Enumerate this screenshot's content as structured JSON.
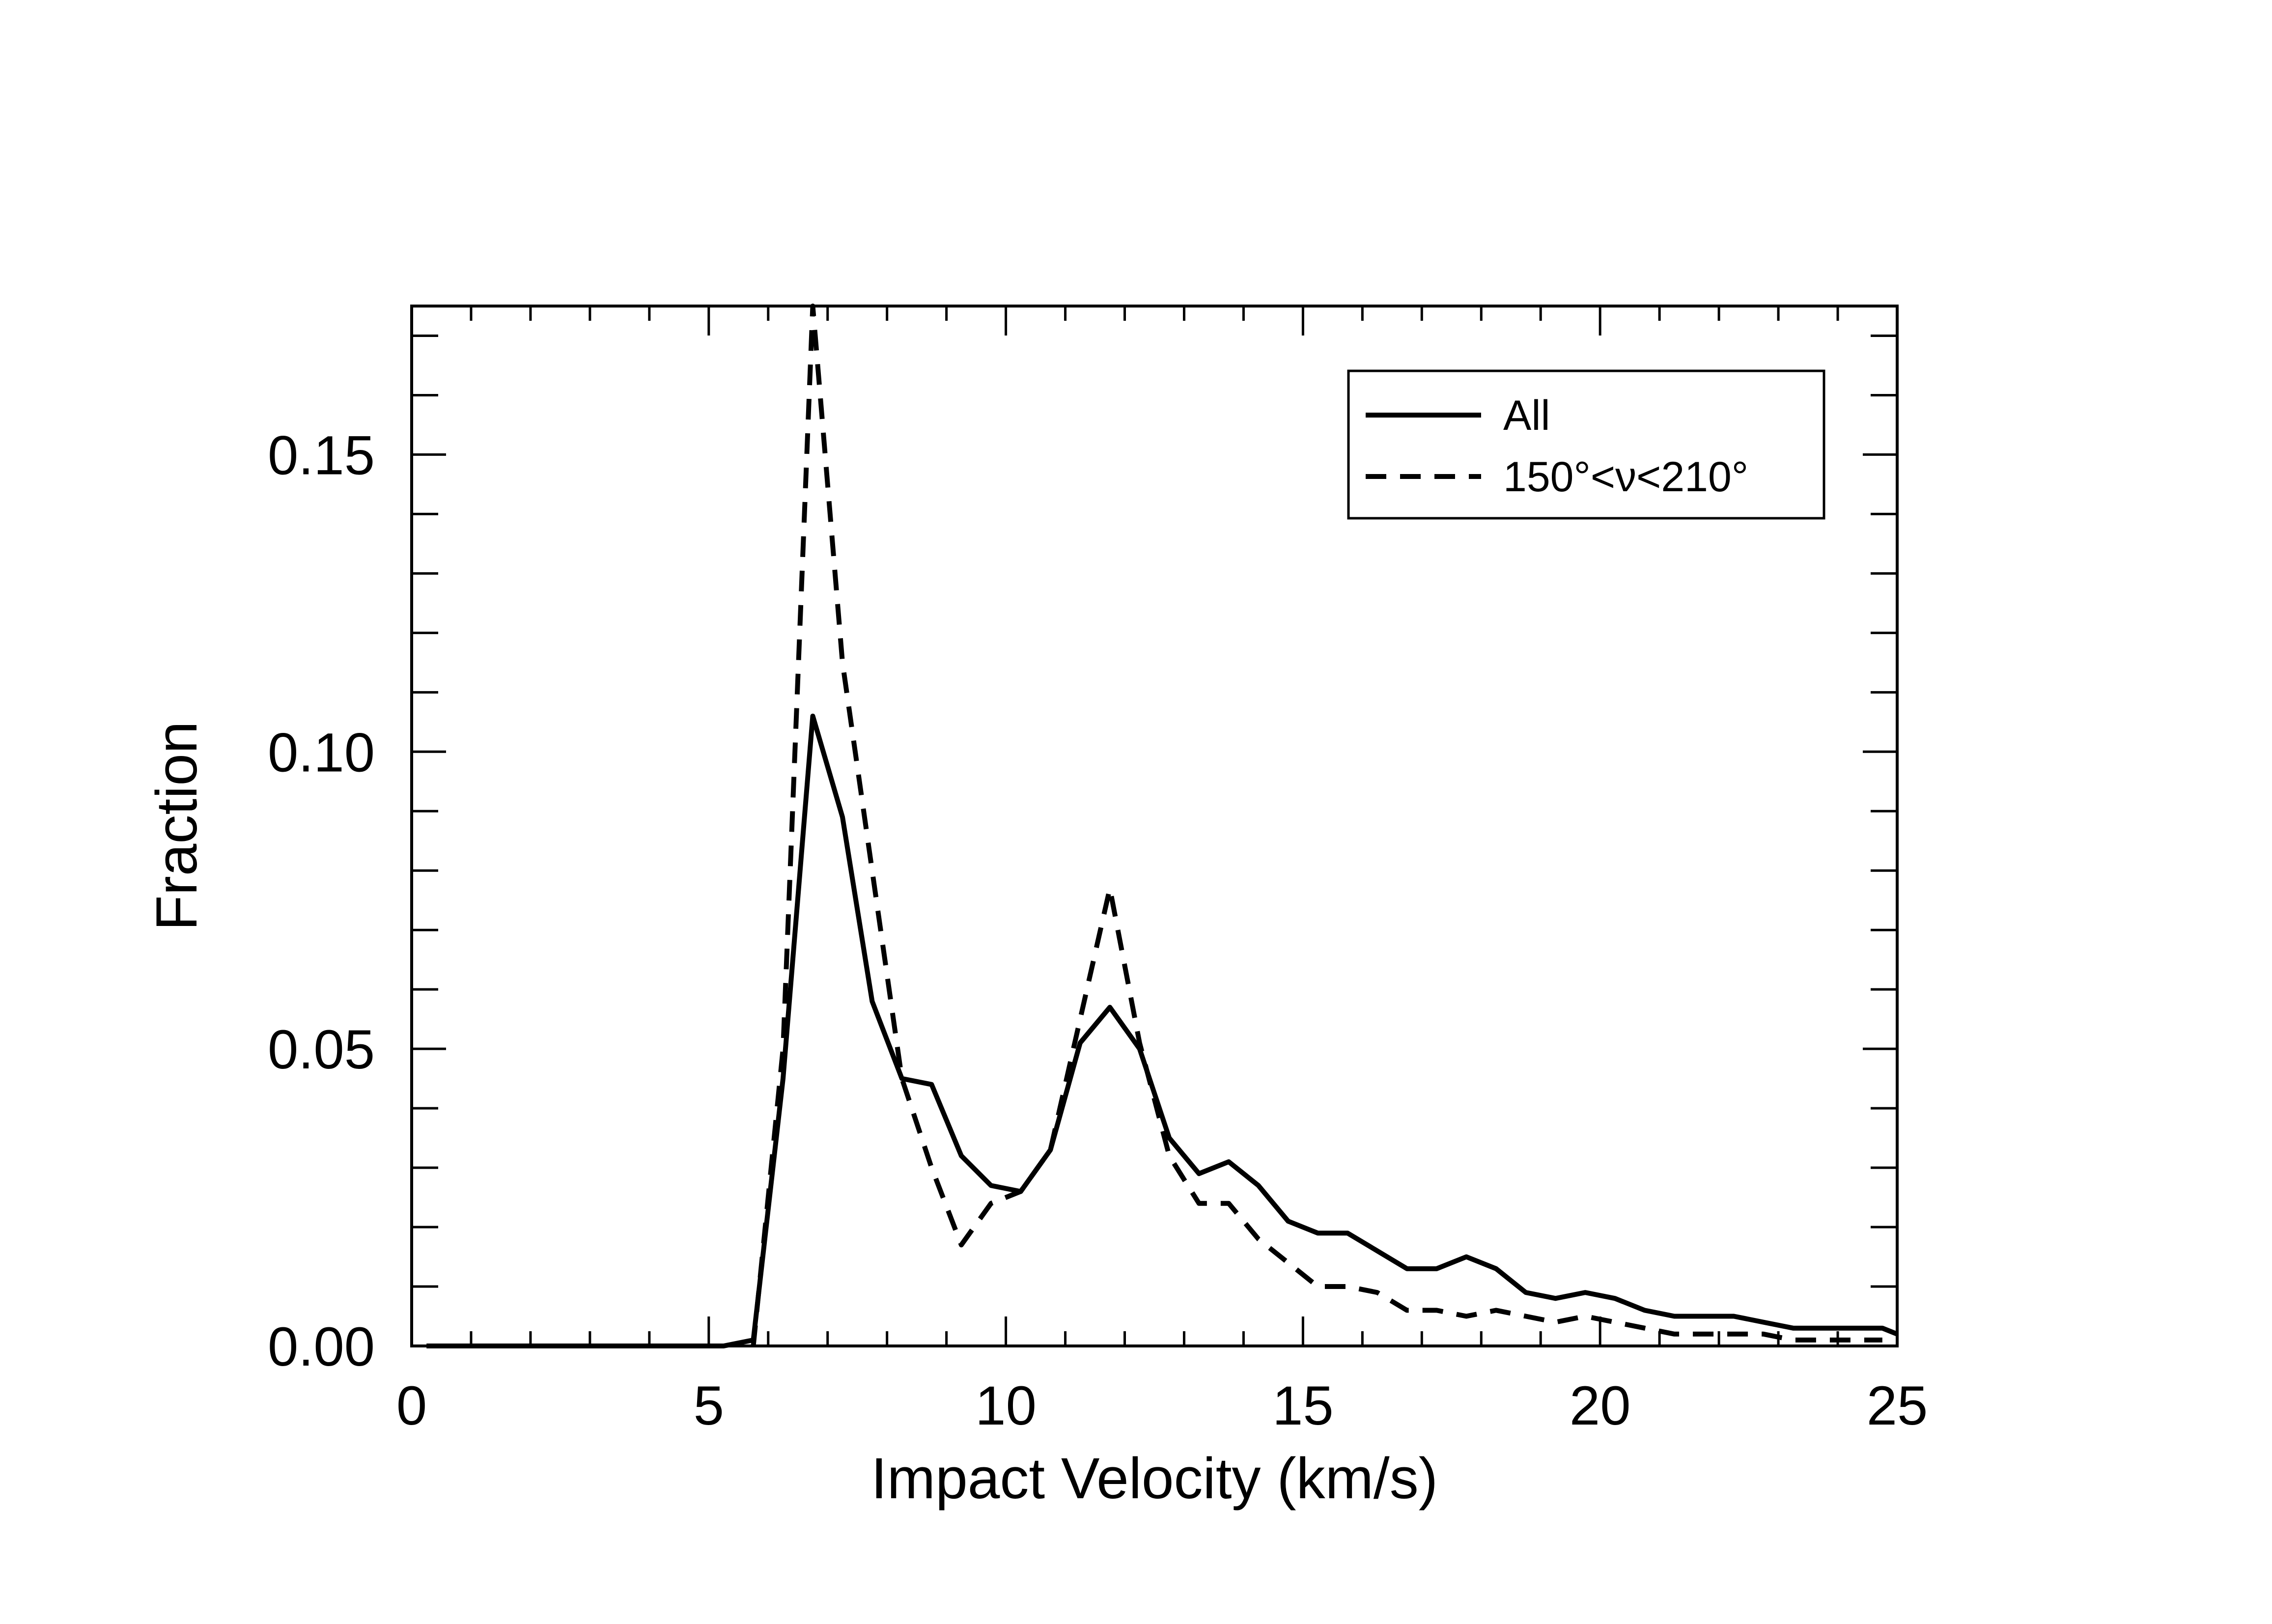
{
  "chart_data": {
    "type": "line",
    "title": "",
    "xlabel": "Impact Velocity (km/s)",
    "ylabel": "Fraction",
    "xlim": [
      0,
      25
    ],
    "ylim": [
      0,
      0.175
    ],
    "xticks": [
      0,
      5,
      10,
      15,
      20,
      25
    ],
    "xtick_labels": [
      "0",
      "5",
      "10",
      "15",
      "20",
      "25"
    ],
    "yticks": [
      0.0,
      0.05,
      0.1,
      0.15
    ],
    "ytick_labels": [
      "0.00",
      "0.05",
      "0.10",
      "0.15"
    ],
    "legend_position": "top-right",
    "series": [
      {
        "name": "All",
        "style": "solid",
        "color": "#000000",
        "x": [
          0.25,
          0.75,
          1.25,
          1.75,
          2.25,
          2.75,
          3.25,
          3.75,
          4.25,
          4.75,
          5.25,
          5.75,
          6.25,
          6.75,
          7.25,
          7.75,
          8.25,
          8.75,
          9.25,
          9.75,
          10.25,
          10.75,
          11.25,
          11.75,
          12.25,
          12.75,
          13.25,
          13.75,
          14.25,
          14.75,
          15.25,
          15.75,
          16.25,
          16.75,
          17.25,
          17.75,
          18.25,
          18.75,
          19.25,
          19.75,
          20.25,
          20.75,
          21.25,
          21.75,
          22.25,
          22.75,
          23.25,
          23.75,
          24.25,
          24.75,
          25.0
        ],
        "values": [
          0.0,
          0.0,
          0.0,
          0.0,
          0.0,
          0.0,
          0.0,
          0.0,
          0.0,
          0.0,
          0.0,
          0.001,
          0.045,
          0.106,
          0.089,
          0.058,
          0.045,
          0.044,
          0.032,
          0.027,
          0.026,
          0.033,
          0.051,
          0.057,
          0.05,
          0.035,
          0.029,
          0.031,
          0.027,
          0.021,
          0.019,
          0.019,
          0.016,
          0.013,
          0.013,
          0.015,
          0.013,
          0.009,
          0.008,
          0.009,
          0.008,
          0.006,
          0.005,
          0.005,
          0.005,
          0.004,
          0.003,
          0.003,
          0.003,
          0.003,
          0.002
        ]
      },
      {
        "name": "150°<ν<210°",
        "style": "dashed",
        "color": "#000000",
        "x": [
          5.75,
          6.25,
          6.75,
          7.25,
          7.75,
          8.25,
          8.75,
          9.25,
          9.75,
          10.25,
          10.75,
          11.25,
          11.75,
          12.25,
          12.75,
          13.25,
          13.75,
          14.25,
          14.75,
          15.25,
          15.75,
          16.25,
          16.75,
          17.25,
          17.75,
          18.25,
          18.75,
          19.25,
          19.75,
          20.25,
          20.75,
          21.25,
          21.75,
          22.25,
          22.75,
          23.25,
          23.75,
          24.25,
          24.75
        ],
        "values": [
          0.0,
          0.05,
          0.175,
          0.115,
          0.08,
          0.045,
          0.03,
          0.017,
          0.024,
          0.026,
          0.033,
          0.055,
          0.077,
          0.051,
          0.032,
          0.024,
          0.024,
          0.018,
          0.014,
          0.01,
          0.01,
          0.009,
          0.006,
          0.006,
          0.005,
          0.006,
          0.005,
          0.004,
          0.005,
          0.004,
          0.003,
          0.002,
          0.002,
          0.002,
          0.002,
          0.001,
          0.001,
          0.001,
          0.001
        ]
      }
    ]
  }
}
